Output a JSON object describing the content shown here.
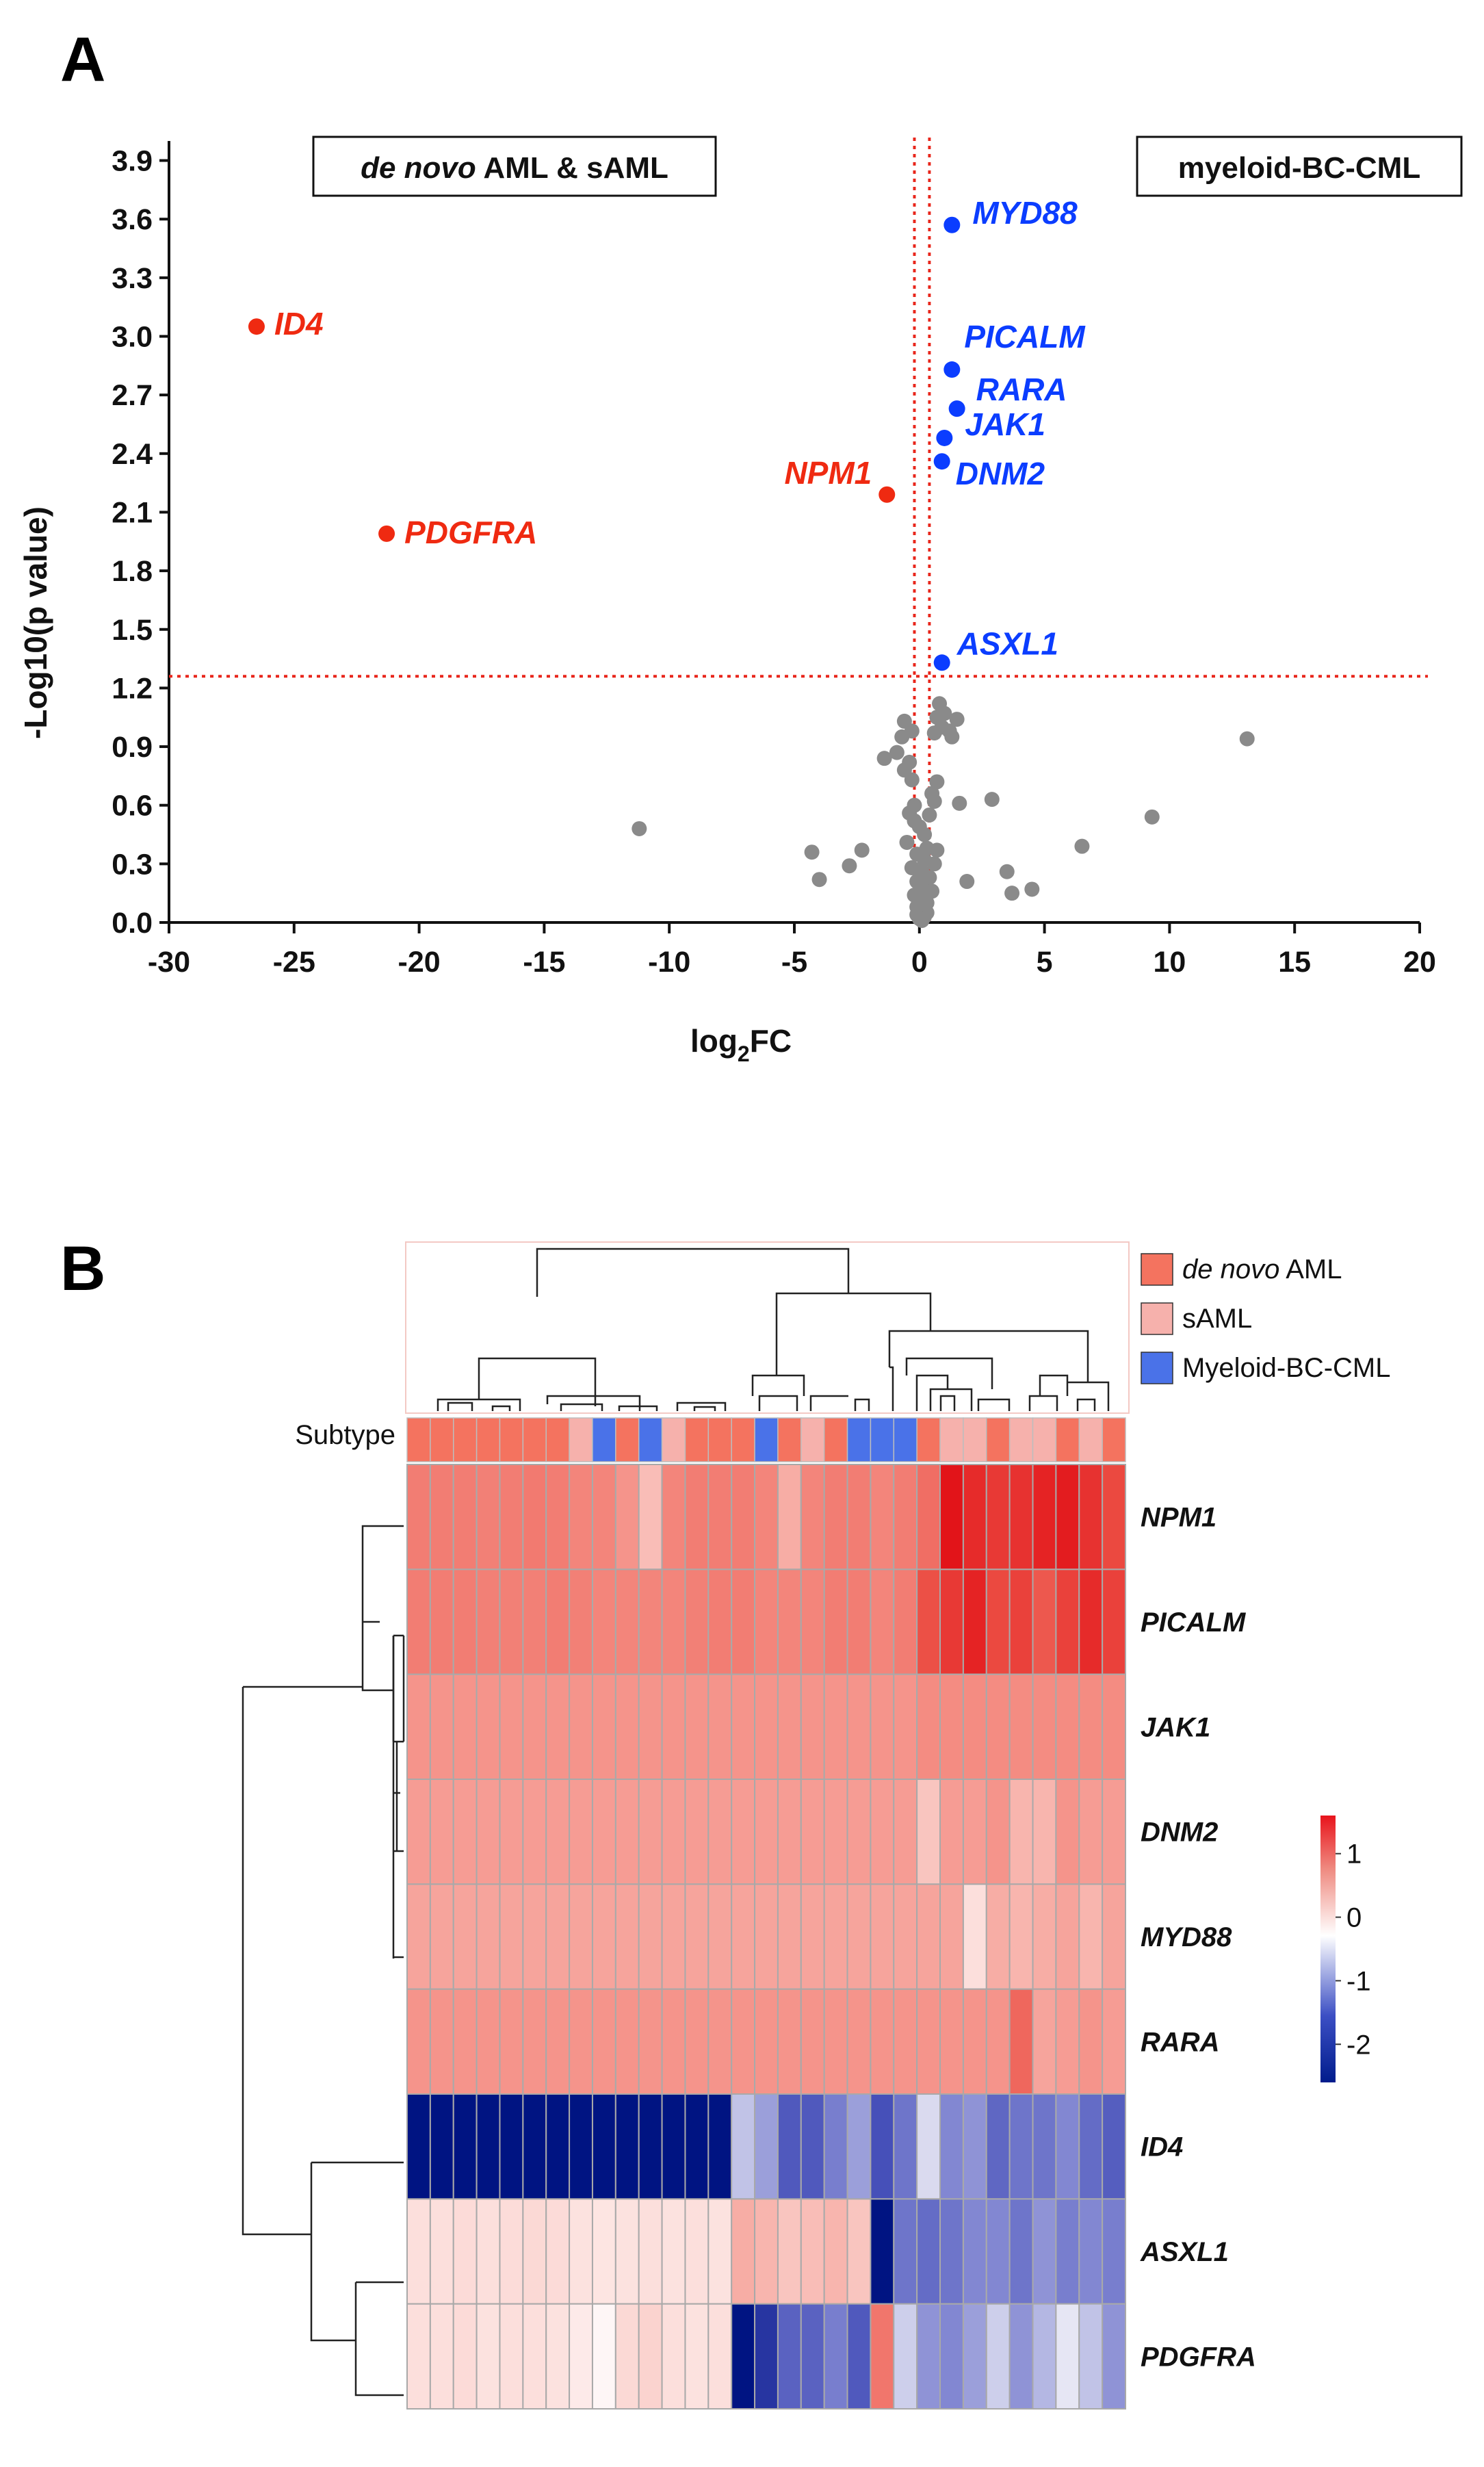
{
  "panel_a": {
    "label": "A",
    "left_box": {
      "italic": "de novo",
      "rest": " AML & sAML"
    },
    "right_box": "myeloid-BC-CML"
  },
  "panel_b": {
    "label": "B",
    "subtype_label": "Subtype",
    "legend": [
      {
        "italic": "de novo",
        "rest": " AML",
        "color": "#f4735f"
      },
      {
        "italic": "",
        "rest": "sAML",
        "color": "#f6b1ac"
      },
      {
        "italic": "",
        "rest": "Myeloid-BC-CML",
        "color": "#4a72e8"
      }
    ],
    "colorbar_ticks": [
      "1",
      "0",
      "-1",
      "-2"
    ]
  },
  "colors": {
    "up": "#0b3dff",
    "down": "#ef2a11",
    "ns": "#8a8a8a",
    "threshold": "#e8261b"
  },
  "chart_data": [
    {
      "type": "scatter",
      "title": "",
      "xlabel_main": "log",
      "xlabel_sub": "2",
      "xlabel_tail": "FC",
      "ylabel": "-Log10(p value)",
      "xlim": [
        -30,
        20
      ],
      "ylim": [
        0,
        4.0
      ],
      "xticks": [
        -30,
        -25,
        -20,
        -15,
        -10,
        -5,
        0,
        5,
        10,
        15,
        20
      ],
      "yticks": [
        "0.0",
        "0.3",
        "0.6",
        "0.9",
        "1.2",
        "1.5",
        "1.8",
        "2.1",
        "2.4",
        "2.7",
        "3.0",
        "3.3",
        "3.6",
        "3.9"
      ],
      "threshold_y": 1.26,
      "threshold_x": [
        -0.2,
        0.4
      ],
      "labeled_points": [
        {
          "gene": "MYD88",
          "x": 1.3,
          "y": 3.57,
          "group": "up"
        },
        {
          "gene": "PICALM",
          "x": 1.3,
          "y": 2.83,
          "group": "up"
        },
        {
          "gene": "RARA",
          "x": 1.5,
          "y": 2.63,
          "group": "up"
        },
        {
          "gene": "JAK1",
          "x": 1.0,
          "y": 2.48,
          "group": "up"
        },
        {
          "gene": "DNM2",
          "x": 0.9,
          "y": 2.36,
          "group": "up"
        },
        {
          "gene": "ASXL1",
          "x": 0.9,
          "y": 1.33,
          "group": "up"
        },
        {
          "gene": "ID4",
          "x": -26.5,
          "y": 3.05,
          "group": "down"
        },
        {
          "gene": "NPM1",
          "x": -1.3,
          "y": 2.19,
          "group": "down"
        },
        {
          "gene": "PDGFRA",
          "x": -21.3,
          "y": 1.99,
          "group": "down"
        }
      ],
      "ns_points": [
        [
          0.8,
          1.12
        ],
        [
          1.0,
          1.07
        ],
        [
          0.7,
          1.05
        ],
        [
          1.5,
          1.04
        ],
        [
          0.9,
          1.0
        ],
        [
          1.2,
          0.98
        ],
        [
          0.6,
          0.97
        ],
        [
          1.3,
          0.95
        ],
        [
          -0.6,
          1.03
        ],
        [
          -0.3,
          0.98
        ],
        [
          -0.7,
          0.95
        ],
        [
          -0.9,
          0.87
        ],
        [
          -0.4,
          0.82
        ],
        [
          -1.4,
          0.84
        ],
        [
          -0.6,
          0.78
        ],
        [
          -0.3,
          0.73
        ],
        [
          0.7,
          0.72
        ],
        [
          0.5,
          0.66
        ],
        [
          0.6,
          0.62
        ],
        [
          1.6,
          0.61
        ],
        [
          2.9,
          0.63
        ],
        [
          -0.2,
          0.6
        ],
        [
          -0.4,
          0.56
        ],
        [
          0.4,
          0.55
        ],
        [
          -0.2,
          0.52
        ],
        [
          0.0,
          0.49
        ],
        [
          0.2,
          0.45
        ],
        [
          -0.5,
          0.41
        ],
        [
          0.3,
          0.38
        ],
        [
          0.7,
          0.37
        ],
        [
          -0.1,
          0.35
        ],
        [
          0.2,
          0.32
        ],
        [
          0.6,
          0.3
        ],
        [
          -0.3,
          0.28
        ],
        [
          0.1,
          0.26
        ],
        [
          0.4,
          0.23
        ],
        [
          -0.1,
          0.21
        ],
        [
          0.2,
          0.18
        ],
        [
          0.5,
          0.16
        ],
        [
          -0.2,
          0.14
        ],
        [
          0.0,
          0.12
        ],
        [
          0.3,
          0.1
        ],
        [
          -0.1,
          0.08
        ],
        [
          0.1,
          0.06
        ],
        [
          0.3,
          0.05
        ],
        [
          -0.1,
          0.04
        ],
        [
          0.2,
          0.03
        ],
        [
          0.0,
          0.02
        ],
        [
          0.1,
          0.01
        ],
        [
          -11.2,
          0.48
        ],
        [
          -4.3,
          0.36
        ],
        [
          -2.3,
          0.37
        ],
        [
          -4.0,
          0.22
        ],
        [
          -2.8,
          0.29
        ],
        [
          1.9,
          0.21
        ],
        [
          3.5,
          0.26
        ],
        [
          3.7,
          0.15
        ],
        [
          4.5,
          0.17
        ],
        [
          6.5,
          0.39
        ],
        [
          9.3,
          0.54
        ],
        [
          13.1,
          0.94
        ]
      ]
    },
    {
      "type": "heatmap",
      "rows": [
        "NPM1",
        "PICALM",
        "JAK1",
        "DNM2",
        "MYD88",
        "RARA",
        "ID4",
        "ASXL1",
        "PDGFRA"
      ],
      "n_columns": 31,
      "value_range": [
        -2.5,
        1.6
      ],
      "subtype": [
        "d",
        "d",
        "d",
        "d",
        "d",
        "d",
        "d",
        "s",
        "c",
        "d",
        "c",
        "s",
        "d",
        "d",
        "d",
        "c",
        "d",
        "s",
        "d",
        "c",
        "c",
        "c",
        "d",
        "s",
        "s",
        "d",
        "s",
        "s",
        "d",
        "s",
        "d"
      ],
      "values": [
        [
          0.9,
          0.9,
          0.9,
          0.88,
          0.9,
          0.92,
          0.9,
          0.85,
          0.85,
          0.75,
          0.5,
          0.85,
          0.9,
          0.9,
          0.9,
          0.85,
          0.6,
          0.85,
          0.9,
          0.9,
          0.85,
          0.9,
          1.0,
          1.6,
          1.45,
          1.35,
          1.4,
          1.5,
          1.55,
          1.4,
          1.25
        ],
        [
          0.9,
          0.9,
          0.9,
          0.88,
          0.88,
          0.88,
          0.9,
          0.88,
          0.85,
          0.85,
          0.85,
          0.85,
          0.88,
          0.9,
          0.9,
          0.85,
          0.85,
          0.85,
          0.9,
          0.9,
          0.85,
          0.9,
          1.2,
          1.35,
          1.5,
          1.25,
          1.3,
          1.15,
          1.3,
          1.45,
          1.3
        ],
        [
          0.75,
          0.75,
          0.75,
          0.75,
          0.75,
          0.75,
          0.75,
          0.75,
          0.75,
          0.75,
          0.75,
          0.75,
          0.75,
          0.75,
          0.75,
          0.75,
          0.75,
          0.75,
          0.75,
          0.75,
          0.75,
          0.75,
          0.8,
          0.8,
          0.8,
          0.8,
          0.8,
          0.8,
          0.8,
          0.8,
          0.8
        ],
        [
          0.7,
          0.7,
          0.7,
          0.7,
          0.7,
          0.7,
          0.7,
          0.7,
          0.7,
          0.7,
          0.7,
          0.7,
          0.7,
          0.7,
          0.7,
          0.7,
          0.7,
          0.7,
          0.7,
          0.7,
          0.7,
          0.7,
          0.45,
          0.7,
          0.7,
          0.75,
          0.55,
          0.55,
          0.75,
          0.7,
          0.7
        ],
        [
          0.65,
          0.65,
          0.65,
          0.65,
          0.65,
          0.65,
          0.65,
          0.65,
          0.65,
          0.65,
          0.65,
          0.65,
          0.65,
          0.65,
          0.65,
          0.65,
          0.65,
          0.65,
          0.65,
          0.65,
          0.65,
          0.65,
          0.65,
          0.65,
          0.25,
          0.6,
          0.55,
          0.6,
          0.65,
          0.55,
          0.65
        ],
        [
          0.75,
          0.75,
          0.75,
          0.75,
          0.75,
          0.75,
          0.75,
          0.75,
          0.75,
          0.75,
          0.75,
          0.75,
          0.75,
          0.75,
          0.75,
          0.75,
          0.75,
          0.75,
          0.75,
          0.75,
          0.75,
          0.75,
          0.75,
          0.75,
          0.75,
          0.75,
          1.05,
          0.65,
          0.7,
          0.75,
          0.7
        ],
        [
          -2.5,
          -2.5,
          -2.5,
          -2.5,
          -2.5,
          -2.5,
          -2.5,
          -2.5,
          -2.5,
          -2.5,
          -2.5,
          -2.5,
          -2.5,
          -2.5,
          -0.5,
          -0.8,
          -1.5,
          -1.5,
          -1.1,
          -0.8,
          -1.6,
          -1.2,
          -0.3,
          -1.0,
          -0.9,
          -1.35,
          -1.2,
          -1.2,
          -1.0,
          -1.3,
          -1.45
        ],
        [
          0.25,
          0.25,
          0.28,
          0.25,
          0.27,
          0.3,
          0.28,
          0.22,
          0.2,
          0.22,
          0.25,
          0.22,
          0.25,
          0.22,
          0.6,
          0.55,
          0.45,
          0.5,
          0.55,
          0.45,
          -2.5,
          -1.2,
          -1.3,
          -1.2,
          -1.0,
          -1.0,
          -1.2,
          -0.9,
          -1.1,
          -1.0,
          -1.1
        ],
        [
          0.25,
          0.25,
          0.28,
          0.22,
          0.25,
          0.25,
          0.22,
          0.15,
          0.05,
          0.3,
          0.35,
          0.25,
          0.22,
          0.25,
          -2.5,
          -2.0,
          -1.4,
          -1.4,
          -1.1,
          -1.5,
          0.95,
          -0.4,
          -0.9,
          -1.0,
          -0.8,
          -0.4,
          -0.9,
          -0.6,
          -0.2,
          -0.5,
          -0.9
        ]
      ],
      "colorbar_range": [
        -2.6,
        1.6
      ]
    }
  ]
}
